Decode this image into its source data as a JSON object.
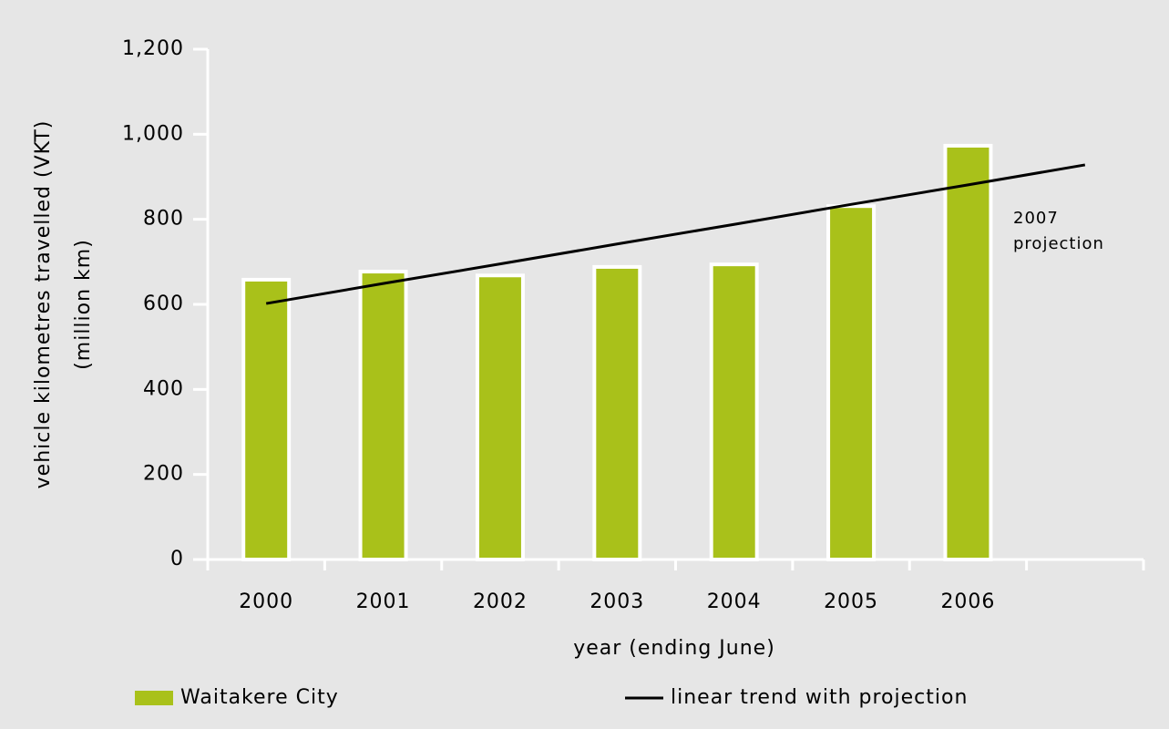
{
  "chart_data": {
    "type": "bar",
    "x_label": "year (ending June)",
    "y_label": [
      "vehicle kilometres travelled (VKT)",
      "(million km)"
    ],
    "annotation": [
      "2007",
      "projection"
    ],
    "categories": [
      "2000",
      "2001",
      "2002",
      "2003",
      "2004",
      "2005",
      "2006",
      null
    ],
    "series": [
      {
        "name": "Waitakere City",
        "type": "bar",
        "color": "#a9c11a",
        "values": [
          658,
          677,
          668,
          688,
          694,
          831,
          973,
          null
        ]
      },
      {
        "name": "linear trend with projection",
        "type": "line",
        "color": "#000000",
        "values": [
          602,
          649,
          695,
          742,
          788,
          835,
          881,
          928
        ]
      }
    ],
    "ylim": [
      0,
      1200
    ],
    "yticks": [
      0,
      200,
      400,
      600,
      800,
      {
        "value": 1000,
        "label": "1,000"
      },
      {
        "value": 1200,
        "label": "1,200"
      }
    ],
    "grid": false,
    "legend": "bottom"
  }
}
